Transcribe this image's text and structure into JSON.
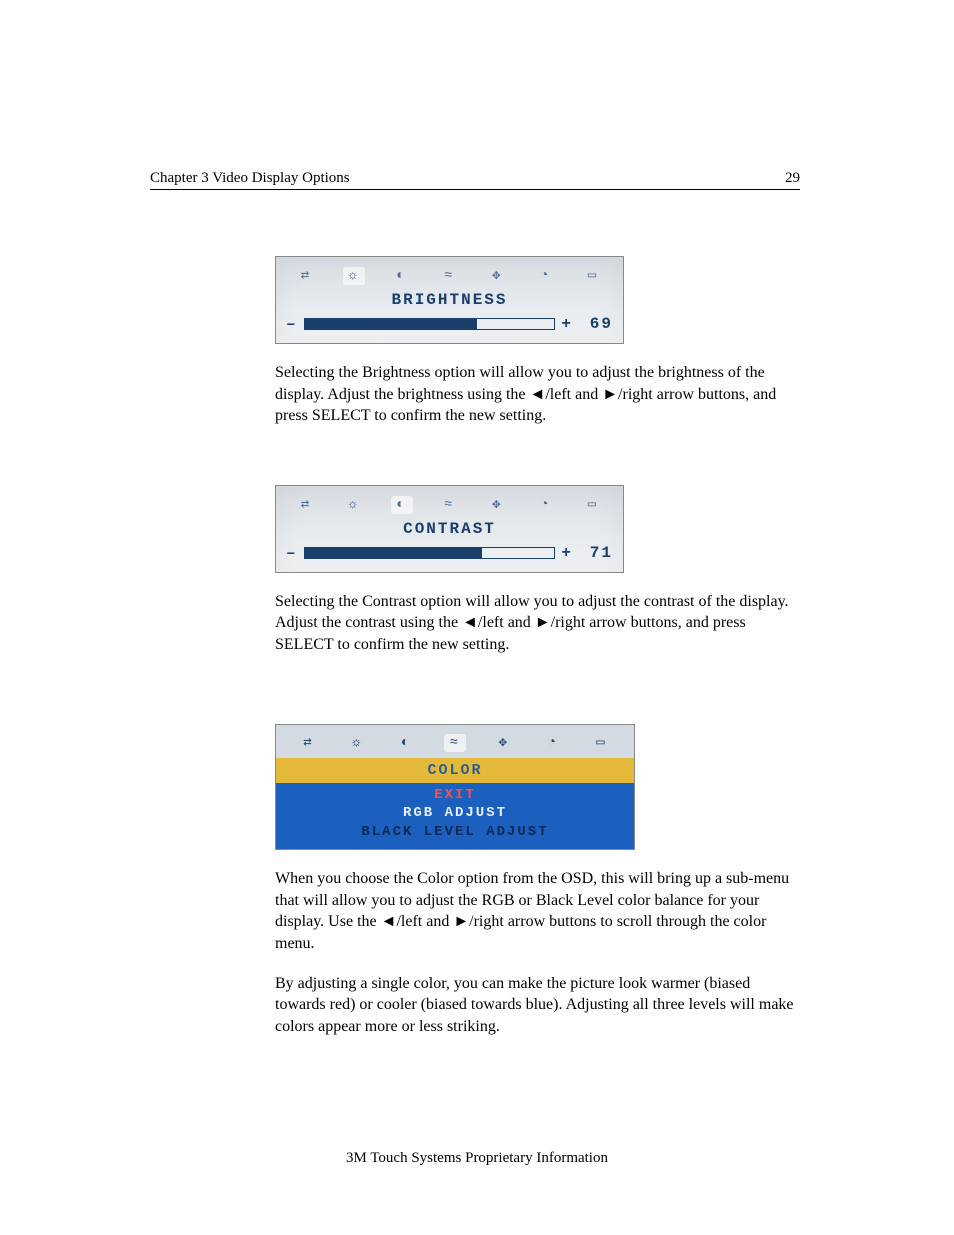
{
  "header": {
    "chapter": "Chapter 3    Video Display Options",
    "page_number": "29"
  },
  "osd_icons": [
    "display-icon",
    "brightness-icon",
    "contrast-icon",
    "gamma-icon",
    "position-icon",
    "clock-icon",
    "exit-icon"
  ],
  "brightness": {
    "label": "BRIGHTNESS",
    "value": "69",
    "fill_pct": 69,
    "minus": "–",
    "plus": "+",
    "active_icon_index": 1,
    "bg_start": "#d9dee4",
    "bg_end": "#f2f4f6",
    "text_color": "#1a3f6b",
    "icon_color": "#516f94"
  },
  "para_brightness": "Selecting the Brightness option will allow you to adjust the brightness of the display. Adjust the brightness using the ◄/left and ►/right arrow buttons, and press SELECT to confirm the new setting.",
  "contrast": {
    "label": "CONTRAST",
    "value": "71",
    "fill_pct": 71,
    "minus": "–",
    "plus": "+",
    "active_icon_index": 2,
    "bg_start": "#d9dfe6",
    "bg_end": "#f4f6f8",
    "text_color": "#1a3f6b",
    "icon_color": "#516f94"
  },
  "para_contrast": "Selecting the Contrast option will allow you to adjust the contrast of the display. Adjust the contrast using the ◄/left and ►/right arrow buttons, and press SELECT to confirm the new setting.",
  "color_menu": {
    "title": "COLOR",
    "items": {
      "exit": "EXIT",
      "rgb": "RGB  ADJUST",
      "black": "BLACK  LEVEL  ADJUST"
    },
    "active_icon_index": 3,
    "titlebar_bg": "#e4b93a",
    "submenu_bg": "#1b5fbf",
    "exit_color": "#ff4d41",
    "text_color": "#e6eefc",
    "muted_color": "#0d2a55",
    "icon_bg": "#d4dae2"
  },
  "para_color_1": "When you choose the Color option from the OSD, this will bring up a sub-menu that will allow you to adjust the RGB or Black Level color balance for your display. Use the ◄/left and ►/right arrow buttons to scroll through the color menu.",
  "para_color_2": "By adjusting a single color, you can make the picture look warmer (biased towards red) or cooler (biased towards blue). Adjusting all three levels will make colors appear more or less striking.",
  "footer": "3M Touch Systems Proprietary Information",
  "icon_glyphs": {
    "display-icon": "⇄",
    "brightness-icon": "☼",
    "contrast-icon": "◐",
    "gamma-icon": "≈",
    "position-icon": "✥",
    "clock-icon": "◔",
    "exit-icon": "▭"
  }
}
